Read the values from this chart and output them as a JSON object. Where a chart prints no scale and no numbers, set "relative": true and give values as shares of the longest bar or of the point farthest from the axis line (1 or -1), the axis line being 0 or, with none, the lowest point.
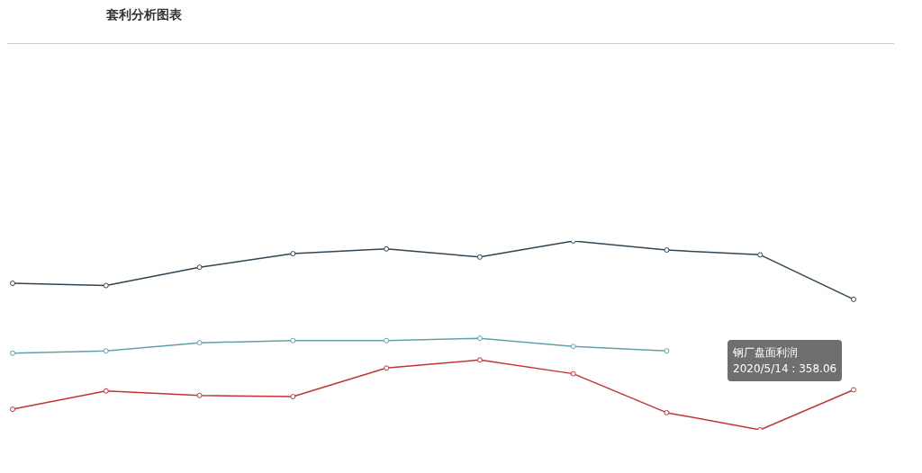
{
  "chart_data": {
    "type": "line",
    "title": "套利分析图表",
    "relative": true,
    "marker": "circle",
    "categories": [
      null,
      null,
      null,
      null,
      null,
      null,
      null,
      null,
      null,
      null
    ],
    "series": [
      {
        "color": "#2f4554",
        "values": [
          0.776,
          0.764,
          0.861,
          0.933,
          0.958,
          0.915,
          1,
          0.952,
          0.927,
          0.691
        ]
      },
      {
        "color": "#61a0a8",
        "values": [
          0.406,
          0.418,
          0.461,
          0.473,
          0.473,
          0.485,
          0.442,
          0.418,
          null,
          null
        ]
      },
      {
        "color": "#c23531",
        "values": [
          0.109,
          0.206,
          0.182,
          0.176,
          0.327,
          0.37,
          0.297,
          0.091,
          0,
          0.212
        ]
      }
    ],
    "annotations": [
      "钢厂盘面利润\n2020/5/14 : 358.06"
    ]
  }
}
